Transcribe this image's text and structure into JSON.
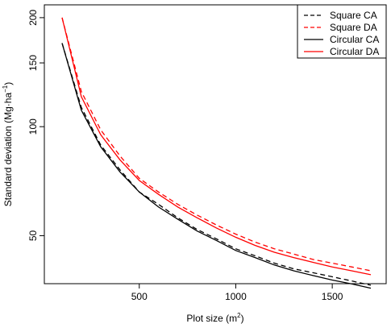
{
  "chart_data": {
    "type": "line",
    "xlabel": "Plot size (m",
    "xlabel_sup": "2",
    "xlabel_end": ")",
    "ylabel": "Standard deviation (Mg·ha",
    "ylabel_sup": "−1",
    "ylabel_end": ")",
    "x_scale": "linear",
    "y_scale": "log",
    "xlim": [
      100,
      1700
    ],
    "ylim": [
      38,
      203
    ],
    "x_ticks": [
      500,
      1000,
      1500
    ],
    "y_ticks": [
      50,
      100,
      150,
      200
    ],
    "x": [
      100,
      200,
      300,
      400,
      500,
      600,
      700,
      800,
      900,
      1000,
      1100,
      1200,
      1300,
      1400,
      1500,
      1600,
      1700
    ],
    "series": [
      {
        "name": "Square CA",
        "color": "#000000",
        "dash": "dashed",
        "values": [
          170,
          113,
          89,
          76,
          66,
          61,
          56,
          52,
          49,
          46,
          44,
          42,
          40.5,
          39.5,
          38.5,
          37.5,
          36.5
        ]
      },
      {
        "name": "Square DA",
        "color": "#ff0000",
        "dash": "dashed",
        "values": [
          200,
          125,
          98,
          83,
          72,
          66,
          61,
          57,
          53.5,
          50.5,
          48,
          46,
          44.5,
          43,
          42,
          41,
          40
        ]
      },
      {
        "name": "Circular CA",
        "color": "#000000",
        "dash": "solid",
        "values": [
          170,
          111,
          88,
          75,
          66,
          60,
          55.5,
          51.5,
          48.5,
          45.5,
          43.5,
          41.5,
          40,
          38.8,
          37.7,
          36.8,
          35.8
        ]
      },
      {
        "name": "Circular DA",
        "color": "#ff0000",
        "dash": "solid",
        "values": [
          200,
          121,
          95,
          81,
          71,
          65,
          60,
          56,
          52.5,
          49.5,
          47,
          45,
          43.5,
          42.2,
          41,
          40,
          39
        ]
      }
    ],
    "legend_position": "top-right",
    "grid": false
  }
}
